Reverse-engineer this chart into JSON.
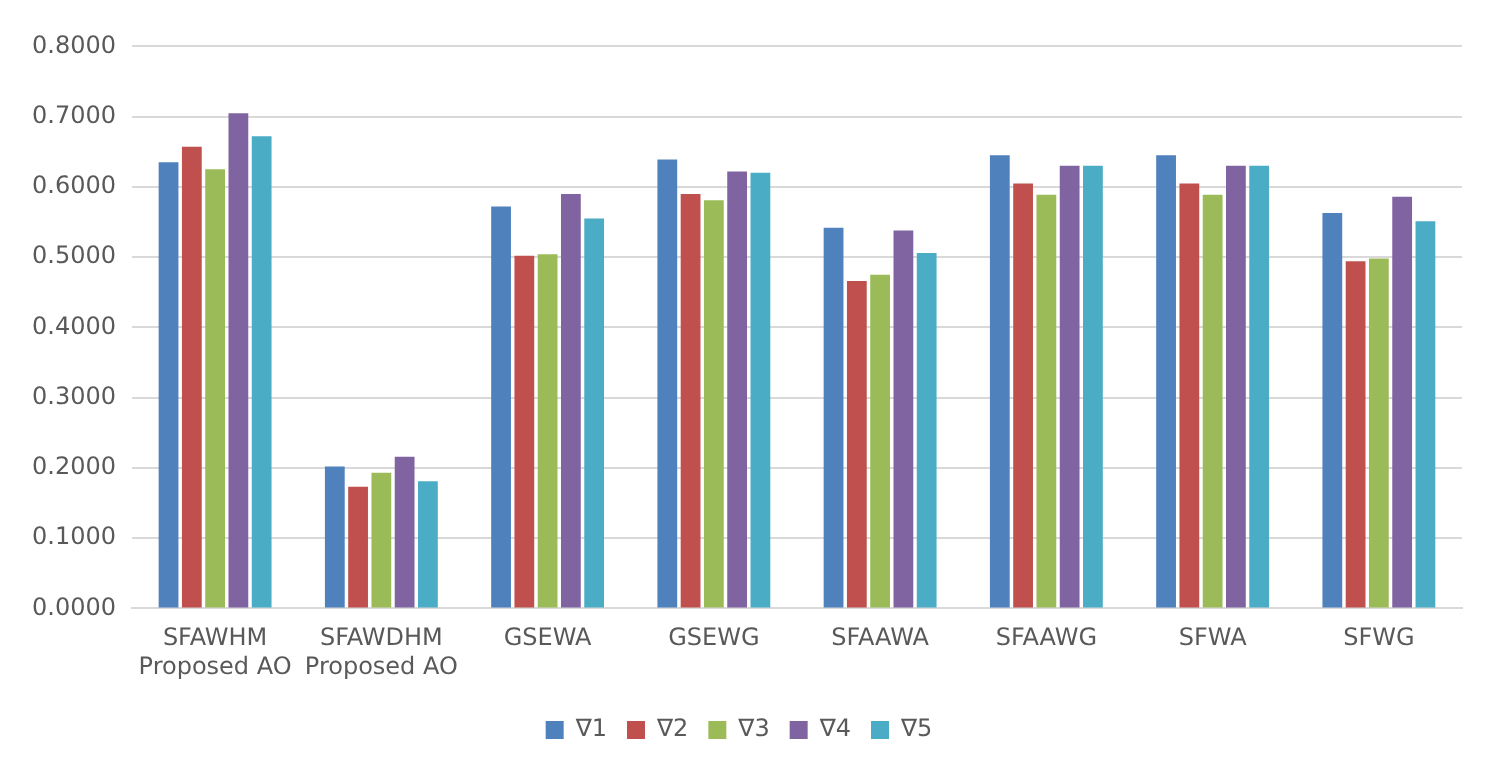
{
  "chart_data": {
    "type": "bar",
    "categories": [
      "SFAWHM\nProposed AO",
      "SFAWDHM\nProposed AO",
      "GSEWA",
      "GSEWG",
      "SFAAWA",
      "SFAAWG",
      "SFWA",
      "SFWG"
    ],
    "series": [
      {
        "name": "∇1",
        "color": "#4f81bd",
        "values": [
          0.635,
          0.202,
          0.572,
          0.639,
          0.542,
          0.645,
          0.645,
          0.563
        ]
      },
      {
        "name": "∇2",
        "color": "#c0504d",
        "values": [
          0.657,
          0.173,
          0.502,
          0.59,
          0.466,
          0.605,
          0.605,
          0.494
        ]
      },
      {
        "name": "∇3",
        "color": "#9bbb59",
        "values": [
          0.625,
          0.193,
          0.504,
          0.581,
          0.475,
          0.589,
          0.589,
          0.498
        ]
      },
      {
        "name": "∇4",
        "color": "#8064a2",
        "values": [
          0.705,
          0.216,
          0.59,
          0.622,
          0.538,
          0.63,
          0.63,
          0.586
        ]
      },
      {
        "name": "∇5",
        "color": "#4bacc6",
        "values": [
          0.672,
          0.181,
          0.555,
          0.62,
          0.506,
          0.63,
          0.63,
          0.551
        ]
      }
    ],
    "ylim": [
      0,
      0.8
    ],
    "yticks": [
      {
        "value": 0,
        "label": "0.0000"
      },
      {
        "value": 0.1,
        "label": "0.1000"
      },
      {
        "value": 0.2,
        "label": "0.2000"
      },
      {
        "value": 0.3,
        "label": "0.3000"
      },
      {
        "value": 0.4,
        "label": "0.4000"
      },
      {
        "value": 0.5,
        "label": "0.5000"
      },
      {
        "value": 0.6,
        "label": "0.6000"
      },
      {
        "value": 0.7,
        "label": "0.7000"
      },
      {
        "value": 0.8,
        "label": "0.8000"
      }
    ],
    "grid": "y",
    "legend": "bottom"
  }
}
